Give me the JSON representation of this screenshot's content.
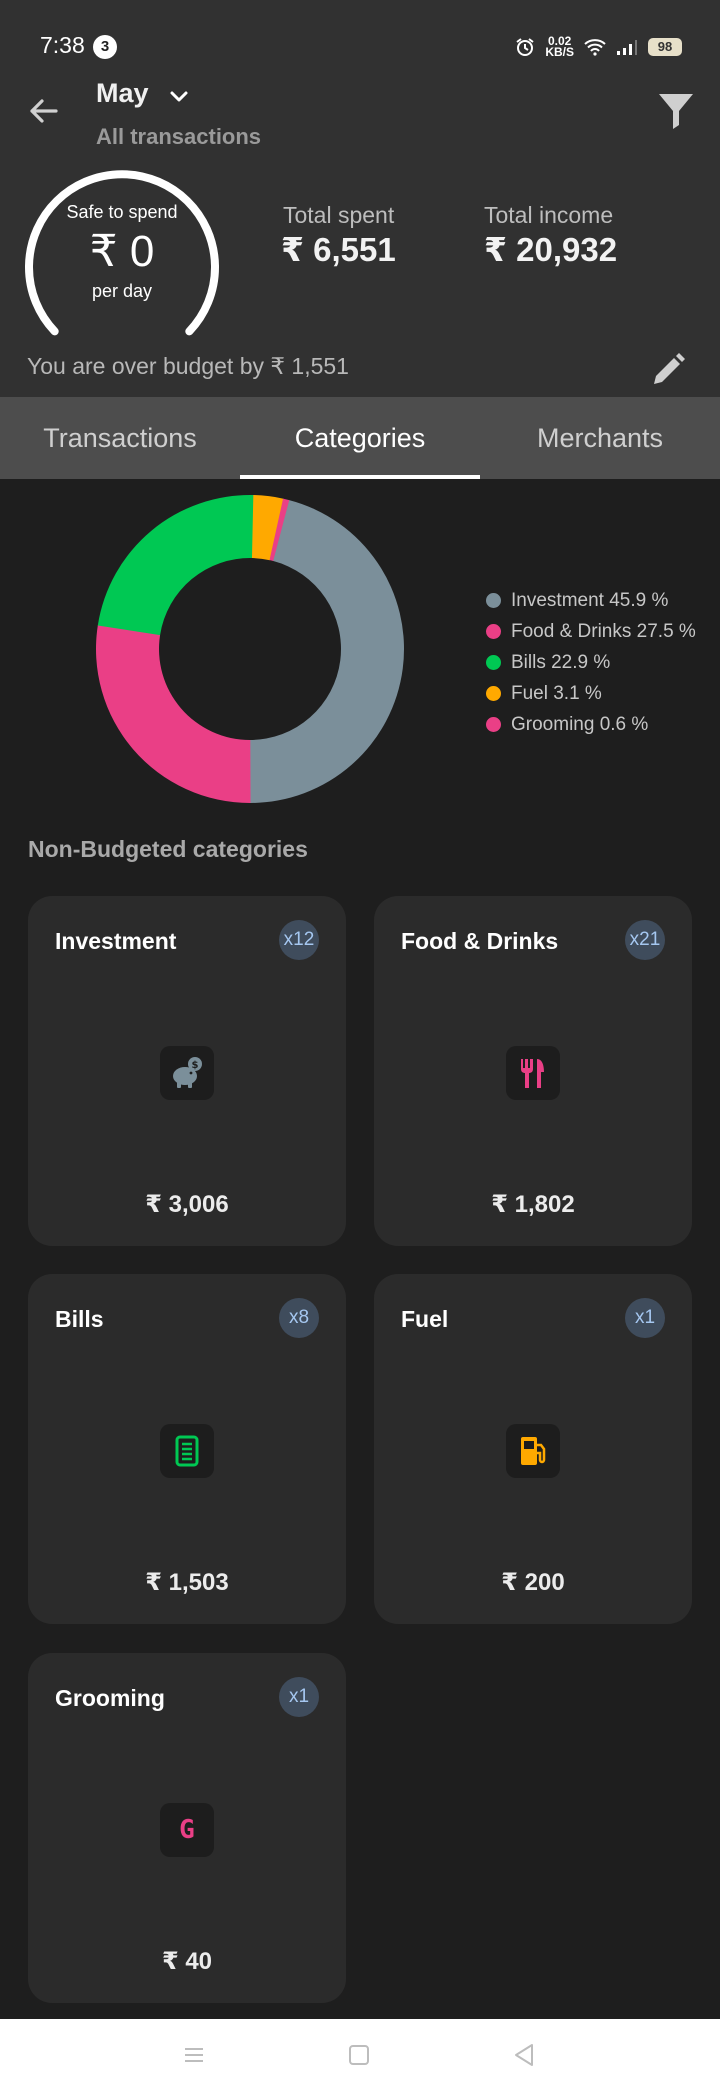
{
  "status_bar": {
    "time": "7:38",
    "notification_count": "3",
    "net_speed_value": "0.02",
    "net_speed_unit": "KB/S",
    "battery": "98"
  },
  "header": {
    "month": "May",
    "subtitle": "All transactions",
    "safe_to_spend_label": "Safe to spend",
    "safe_to_spend_value": "₹ 0",
    "per_day": "per day",
    "total_spent_label": "Total spent",
    "total_spent_value": "₹ 6,551",
    "total_income_label": "Total income",
    "total_income_value": "₹ 20,932",
    "budget_message": "You are over budget by ₹ 1,551"
  },
  "tabs": [
    {
      "label": "Transactions"
    },
    {
      "label": "Categories"
    },
    {
      "label": "Merchants"
    }
  ],
  "active_tab": "Categories",
  "chart_data": {
    "type": "pie",
    "title": "",
    "categories": [
      "Investment",
      "Food & Drinks",
      "Bills",
      "Fuel",
      "Grooming"
    ],
    "values": [
      45.9,
      27.5,
      22.9,
      3.1,
      0.6
    ],
    "colors": [
      "#7b8f9a",
      "#ea3f86",
      "#00c853",
      "#ffa900",
      "#ea3f86"
    ],
    "legend_labels": [
      "Investment 45.9 %",
      "Food & Drinks 27.5 %",
      "Bills 22.9 %",
      "Fuel 3.1 %",
      "Grooming 0.6 %"
    ],
    "legend_position": "right"
  },
  "section_title": "Non-Budgeted categories",
  "categories": [
    {
      "name": "Investment",
      "count": "x12",
      "amount": "₹ 3,006",
      "icon": "piggy-bank-icon",
      "color": "#7b8f9a"
    },
    {
      "name": "Food & Drinks",
      "count": "x21",
      "amount": "₹ 1,802",
      "icon": "fork-knife-icon",
      "color": "#ea3f86"
    },
    {
      "name": "Bills",
      "count": "x8",
      "amount": "₹ 1,503",
      "icon": "receipt-icon",
      "color": "#00c853"
    },
    {
      "name": "Fuel",
      "count": "x1",
      "amount": "₹ 200",
      "icon": "fuel-pump-icon",
      "color": "#ffa900"
    },
    {
      "name": "Grooming",
      "count": "x1",
      "amount": "₹ 40",
      "icon": "grooming-icon",
      "icon_text": "G",
      "color": "#ea3f86"
    }
  ],
  "colors": {
    "header_bg": "#313131",
    "tabs_bg": "#4d4d4d",
    "page_bg": "#1e1e1e",
    "card_bg": "#2b2b2b"
  }
}
